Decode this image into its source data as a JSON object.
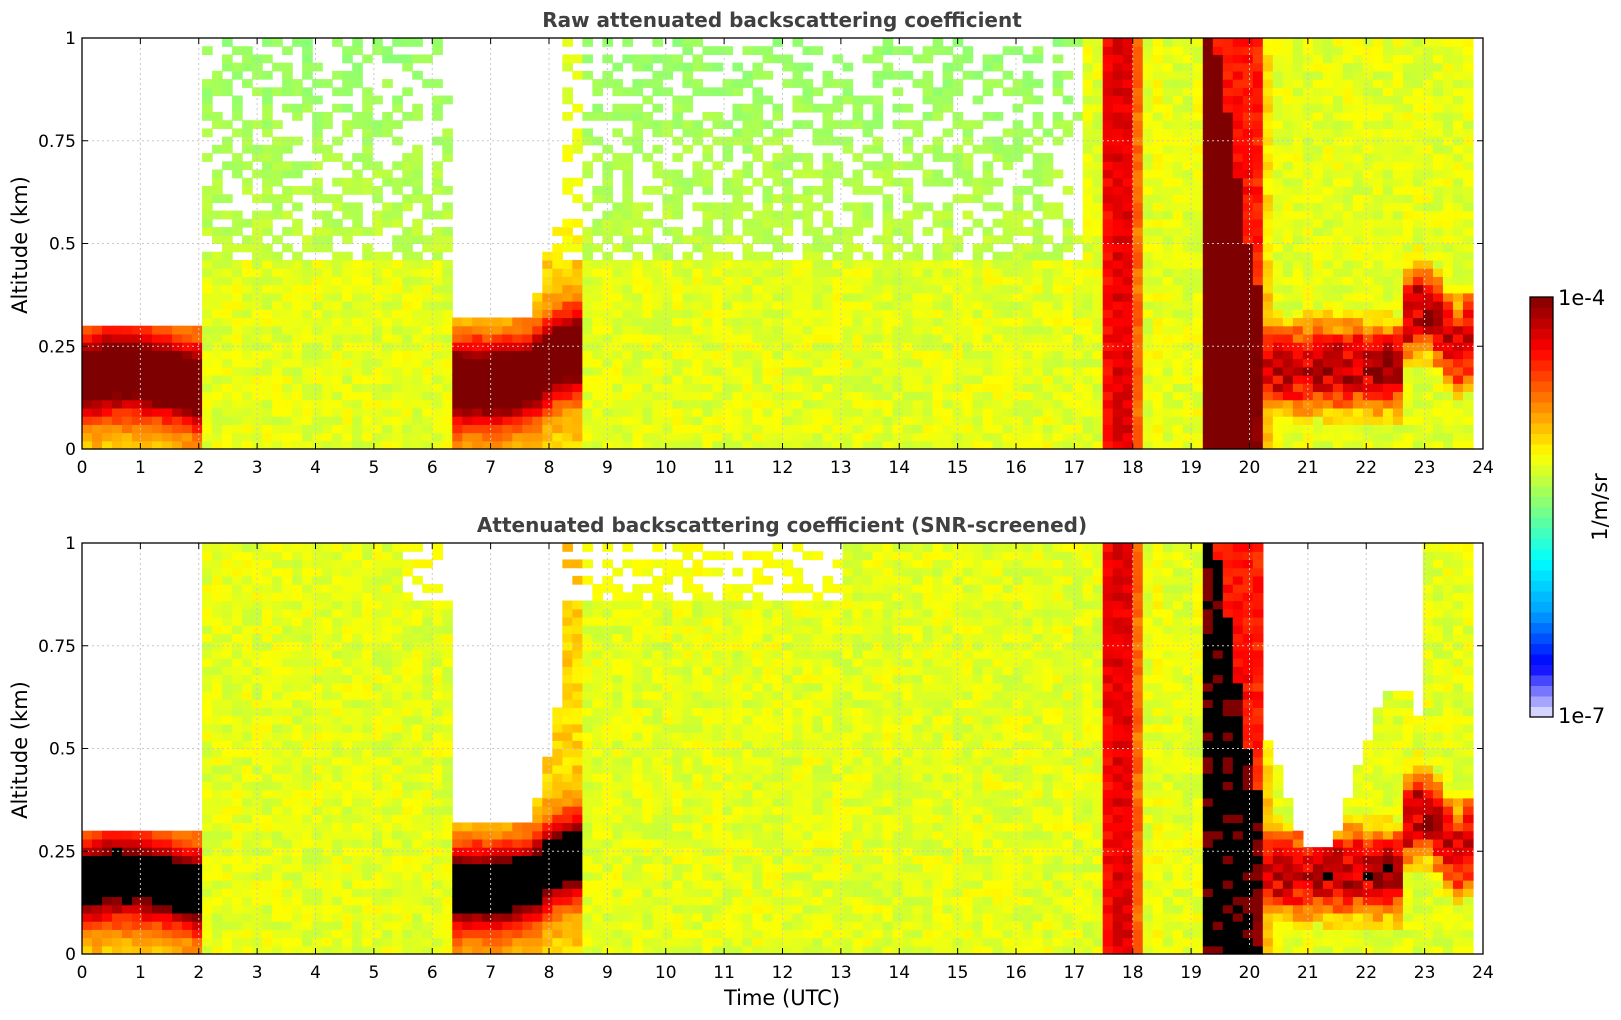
{
  "colors": {
    "colormap": [
      "#ebebff",
      "#0000ff",
      "#00a0ff",
      "#00ffff",
      "#7fff7f",
      "#ffff00",
      "#ff8000",
      "#ff0000",
      "#7f0000"
    ],
    "saturation": "#000000",
    "grid": "#c8c8c8",
    "title": "#404040"
  },
  "chart_data": [
    {
      "type": "heatmap",
      "title": "Raw attenuated backscattering coefficient",
      "xlabel": "",
      "ylabel": "Altitude (km)",
      "xlim": [
        0,
        24
      ],
      "ylim": [
        0,
        1
      ],
      "xticks": [
        "0",
        "1",
        "2",
        "3",
        "4",
        "5",
        "6",
        "7",
        "8",
        "9",
        "10",
        "11",
        "12",
        "13",
        "14",
        "15",
        "16",
        "17",
        "18",
        "19",
        "20",
        "21",
        "22",
        "23",
        "24"
      ],
      "yticks": [
        "0",
        "0.25",
        "0.5",
        "0.75",
        "1"
      ],
      "grid": true,
      "screened": false,
      "features": [
        {
          "name": "boundary-layer-aerosol",
          "time": [
            0,
            2.1
          ],
          "altitude": [
            0.08,
            0.28
          ],
          "peak_log10": -4.0
        },
        {
          "name": "boundary-layer-aerosol",
          "time": [
            6.3,
            8.6
          ],
          "altitude": [
            0.05,
            0.3
          ],
          "peak_log10": -4.0
        },
        {
          "name": "fog-or-low-cloud",
          "time": [
            17.5,
            18.1
          ],
          "altitude": [
            0,
            1
          ],
          "peak_log10": -4.3
        },
        {
          "name": "fog-or-low-cloud",
          "time": [
            19.2,
            20.3
          ],
          "altitude": [
            0,
            1
          ],
          "peak_log10": -4.0
        },
        {
          "name": "elevated-aerosol-layer",
          "time": [
            20.3,
            23.8
          ],
          "altitude": [
            0.1,
            0.6
          ],
          "peak_log10": -4.0
        }
      ]
    },
    {
      "type": "heatmap",
      "title": "Attenuated backscattering coefficient (SNR-screened)",
      "xlabel": "Time (UTC)",
      "ylabel": "Altitude (km)",
      "xlim": [
        0,
        24
      ],
      "ylim": [
        0,
        1
      ],
      "xticks": [
        "0",
        "1",
        "2",
        "3",
        "4",
        "5",
        "6",
        "7",
        "8",
        "9",
        "10",
        "11",
        "12",
        "13",
        "14",
        "15",
        "16",
        "17",
        "18",
        "19",
        "20",
        "21",
        "22",
        "23",
        "24"
      ],
      "yticks": [
        "0",
        "0.25",
        "0.5",
        "0.75",
        "1"
      ],
      "grid": true,
      "screened": true,
      "features": [
        {
          "name": "boundary-layer-aerosol",
          "time": [
            0,
            2.1
          ],
          "altitude": [
            0.08,
            0.28
          ],
          "peak_log10": -3.9
        },
        {
          "name": "boundary-layer-aerosol",
          "time": [
            6.3,
            8.6
          ],
          "altitude": [
            0.05,
            0.3
          ],
          "peak_log10": -3.9
        },
        {
          "name": "fog-or-low-cloud",
          "time": [
            17.5,
            18.1
          ],
          "altitude": [
            0,
            1
          ],
          "peak_log10": -4.3
        },
        {
          "name": "fog-or-low-cloud",
          "time": [
            19.2,
            20.3
          ],
          "altitude": [
            0,
            1
          ],
          "peak_log10": -4.0
        },
        {
          "name": "elevated-aerosol-layer",
          "time": [
            20.3,
            23.8
          ],
          "altitude": [
            0.1,
            0.6
          ],
          "peak_log10": -3.9
        }
      ]
    }
  ],
  "colorbar": {
    "label": "1/m/sr",
    "max_label": "1e-4",
    "min_label": "1e-7",
    "range_log10": [
      -7,
      -4
    ],
    "levels": 40
  }
}
